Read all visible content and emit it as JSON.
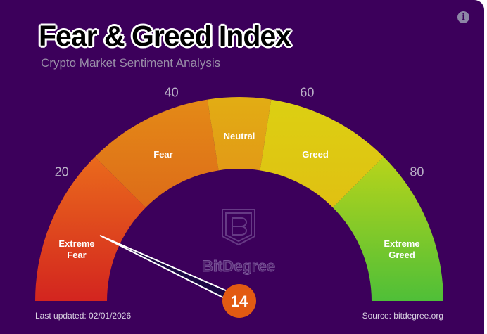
{
  "header": {
    "title": "Fear & Greed Index",
    "subtitle": "Crypto Market Sentiment Analysis",
    "info_icon": "info-icon"
  },
  "gauge": {
    "value": 14,
    "min": 0,
    "max": 100,
    "ticks": [
      "20",
      "40",
      "60",
      "80"
    ],
    "tick_values": [
      20,
      40,
      60,
      80
    ],
    "segments": [
      {
        "label": [
          "Extreme",
          "Fear"
        ],
        "from": 0,
        "to": 25,
        "colors": [
          "#d3251f",
          "#ea6a1c"
        ]
      },
      {
        "label": [
          "Fear"
        ],
        "from": 25,
        "to": 45,
        "colors": [
          "#dd6b18",
          "#e48a17"
        ]
      },
      {
        "label": [
          "Neutral"
        ],
        "from": 45,
        "to": 55,
        "colors": [
          "#e29a16",
          "#e2ad14"
        ]
      },
      {
        "label": [
          "Greed"
        ],
        "from": 55,
        "to": 75,
        "colors": [
          "#e0c012",
          "#dcd012"
        ]
      },
      {
        "label": [
          "Extreme",
          "Greed"
        ],
        "from": 75,
        "to": 100,
        "colors": [
          "#b8d41a",
          "#4fbf38"
        ]
      }
    ],
    "value_badge_color": "#e25a12",
    "watermark": "BitDegree"
  },
  "footer": {
    "updated": "Last updated: 02/01/2026",
    "source": "Source: bitdegree.org"
  },
  "colors": {
    "background": "#3c005b",
    "needle": "#1c0845"
  }
}
